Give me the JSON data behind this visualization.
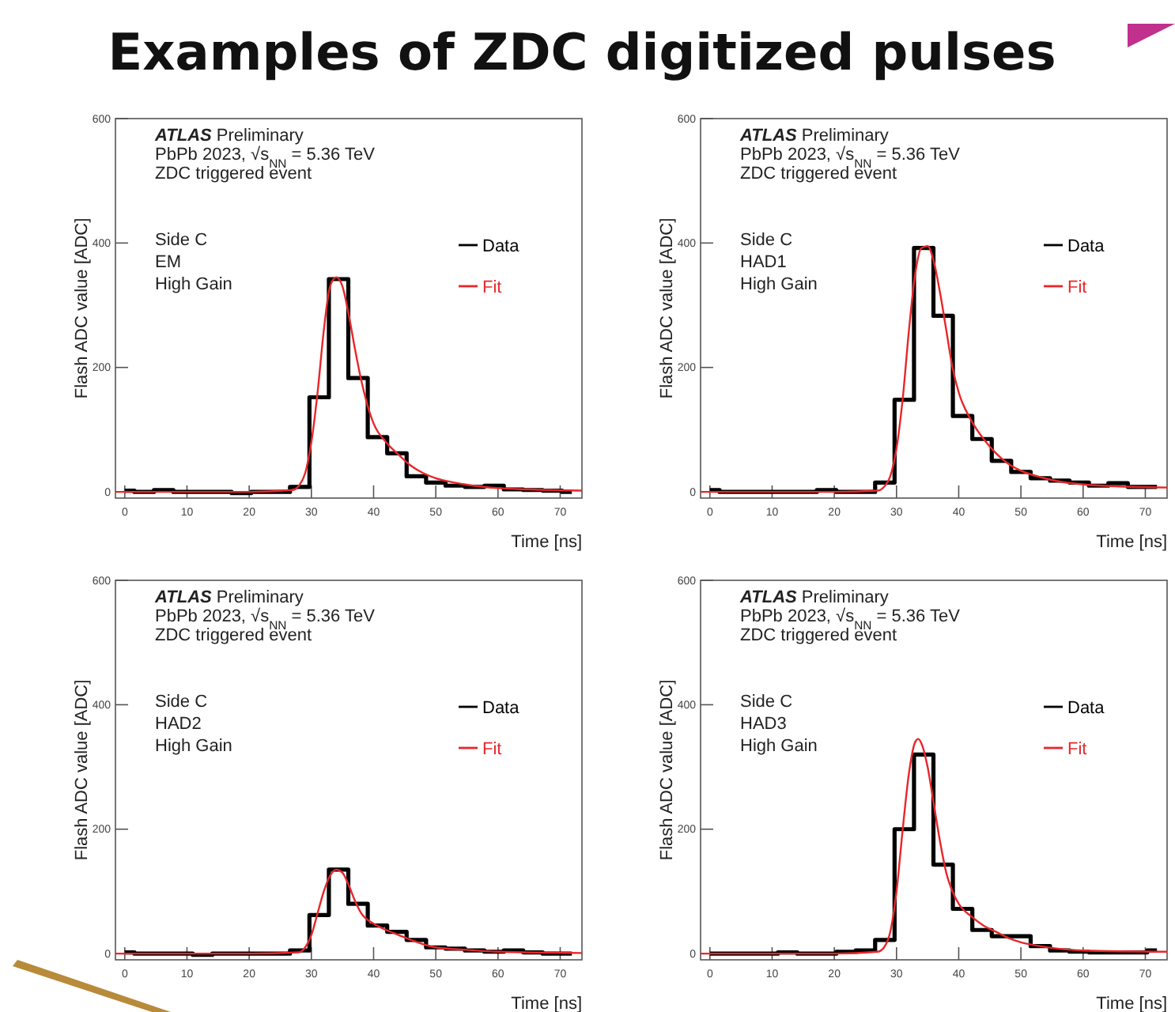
{
  "chart_data": [
    {
      "type": "line",
      "title": "Examples of ZDC digitized pulses",
      "xlabel": "Time [ns]",
      "ylabel": "Flash ADC value [ADC]",
      "xlim": [
        -1.5,
        73.5
      ],
      "ylim": [
        -10,
        600
      ],
      "xticks": [
        0,
        10,
        20,
        30,
        40,
        50,
        60,
        70
      ],
      "yticks": [
        0,
        200,
        400,
        600
      ],
      "legend": "top right",
      "grid": false,
      "annotations": [
        "ATLAS Preliminary",
        "PbPb 2023, √s$_{NN}$ = 5.36 TeV",
        "ZDC triggered event",
        "Side C",
        "EM",
        "High Gain"
      ],
      "series": [
        {
          "name": "Data",
          "type": "step",
          "color": "#000000",
          "x": [
            0,
            3.125,
            6.25,
            9.375,
            12.5,
            15.625,
            18.75,
            21.875,
            25,
            28.125,
            31.25,
            34.375,
            37.5,
            40.625,
            43.75,
            46.875,
            50,
            53.125,
            56.25,
            59.375,
            62.5,
            65.625,
            68.75,
            71.875
          ],
          "values": [
            2,
            0,
            3,
            0,
            0,
            0,
            -2,
            0,
            0,
            8,
            152,
            342,
            183,
            88,
            62,
            25,
            15,
            10,
            8,
            10,
            4,
            3,
            2,
            0
          ]
        },
        {
          "name": "Fit",
          "type": "line",
          "color": "#e8262a",
          "x": [
            -1.5,
            20,
            27,
            28,
            29,
            30,
            31,
            32,
            33,
            34,
            35,
            36,
            37,
            38,
            39,
            40,
            42,
            44,
            46,
            48,
            50,
            53,
            56,
            60,
            65,
            73.5
          ],
          "values": [
            0,
            0,
            3,
            10,
            30,
            80,
            160,
            260,
            330,
            345,
            330,
            285,
            230,
            180,
            140,
            110,
            80,
            60,
            42,
            30,
            22,
            15,
            10,
            6,
            4,
            2
          ]
        }
      ]
    },
    {
      "type": "line",
      "xlabel": "Time [ns]",
      "ylabel": "Flash ADC value [ADC]",
      "xlim": [
        -1.5,
        73.5
      ],
      "ylim": [
        -10,
        600
      ],
      "xticks": [
        0,
        10,
        20,
        30,
        40,
        50,
        60,
        70
      ],
      "yticks": [
        0,
        200,
        400,
        600
      ],
      "legend": "top right",
      "grid": false,
      "annotations": [
        "ATLAS Preliminary",
        "PbPb 2023, √s$_{NN}$ = 5.36 TeV",
        "ZDC triggered event",
        "Side C",
        "HAD1",
        "High Gain"
      ],
      "series": [
        {
          "name": "Data",
          "type": "step",
          "color": "#000000",
          "x": [
            0,
            3.125,
            6.25,
            9.375,
            12.5,
            15.625,
            18.75,
            21.875,
            25,
            28.125,
            31.25,
            34.375,
            37.5,
            40.625,
            43.75,
            46.875,
            50,
            53.125,
            56.25,
            59.375,
            62.5,
            65.625,
            68.75,
            71.875
          ],
          "values": [
            3,
            0,
            0,
            0,
            0,
            0,
            3,
            0,
            0,
            15,
            148,
            392,
            283,
            122,
            85,
            50,
            32,
            22,
            18,
            15,
            10,
            14,
            8,
            8
          ]
        },
        {
          "name": "Fit",
          "type": "line",
          "color": "#e8262a",
          "x": [
            -1.5,
            20,
            27,
            28,
            29,
            30,
            31,
            32,
            33,
            34,
            35,
            36,
            37,
            38,
            39,
            40,
            42,
            44,
            46,
            48,
            50,
            53,
            56,
            60,
            65,
            73.5
          ],
          "values": [
            0,
            0,
            2,
            8,
            25,
            70,
            150,
            260,
            350,
            392,
            395,
            370,
            320,
            260,
            200,
            160,
            115,
            85,
            62,
            45,
            34,
            24,
            17,
            12,
            9,
            7
          ]
        }
      ]
    },
    {
      "type": "line",
      "xlabel": "Time [ns]",
      "ylabel": "Flash ADC value [ADC]",
      "xlim": [
        -1.5,
        73.5
      ],
      "ylim": [
        -10,
        600
      ],
      "xticks": [
        0,
        10,
        20,
        30,
        40,
        50,
        60,
        70
      ],
      "yticks": [
        0,
        200,
        400,
        600
      ],
      "legend": "top right",
      "grid": false,
      "annotations": [
        "ATLAS Preliminary",
        "PbPb 2023, √s$_{NN}$ = 5.36 TeV",
        "ZDC triggered event",
        "Side C",
        "HAD2",
        "High Gain"
      ],
      "series": [
        {
          "name": "Data",
          "type": "step",
          "color": "#000000",
          "x": [
            0,
            3.125,
            6.25,
            9.375,
            12.5,
            15.625,
            18.75,
            21.875,
            25,
            28.125,
            31.25,
            34.375,
            37.5,
            40.625,
            43.75,
            46.875,
            50,
            53.125,
            56.25,
            59.375,
            62.5,
            65.625,
            68.75,
            71.875
          ],
          "values": [
            2,
            0,
            0,
            0,
            -2,
            0,
            0,
            0,
            0,
            5,
            62,
            135,
            80,
            45,
            35,
            22,
            10,
            8,
            5,
            3,
            5,
            2,
            0,
            0
          ]
        },
        {
          "name": "Fit",
          "type": "line",
          "color": "#e8262a",
          "x": [
            -1.5,
            20,
            28,
            29,
            30,
            31,
            32,
            33,
            34,
            35,
            36,
            37,
            38,
            40,
            42,
            44,
            46,
            48,
            50,
            55,
            60,
            73.5
          ],
          "values": [
            0,
            0,
            2,
            10,
            30,
            65,
            100,
            125,
            135,
            130,
            110,
            85,
            65,
            48,
            38,
            30,
            22,
            15,
            10,
            6,
            3,
            1
          ]
        }
      ]
    },
    {
      "type": "line",
      "xlabel": "Time [ns]",
      "ylabel": "Flash ADC value [ADC]",
      "xlim": [
        -1.5,
        73.5
      ],
      "ylim": [
        -10,
        600
      ],
      "xticks": [
        0,
        10,
        20,
        30,
        40,
        50,
        60,
        70
      ],
      "yticks": [
        0,
        200,
        400,
        600
      ],
      "legend": "top right",
      "grid": false,
      "annotations": [
        "ATLAS Preliminary",
        "PbPb 2023, √s$_{NN}$ = 5.36 TeV",
        "ZDC triggered event",
        "Side C",
        "HAD3",
        "High Gain"
      ],
      "series": [
        {
          "name": "Data",
          "type": "step",
          "color": "#000000",
          "x": [
            0,
            3.125,
            6.25,
            9.375,
            12.5,
            15.625,
            18.75,
            21.875,
            25,
            28.125,
            31.25,
            34.375,
            37.5,
            40.625,
            43.75,
            46.875,
            50,
            53.125,
            56.25,
            59.375,
            62.5,
            65.625,
            68.75,
            71.875
          ],
          "values": [
            0,
            0,
            0,
            0,
            2,
            0,
            0,
            3,
            5,
            22,
            200,
            320,
            143,
            72,
            38,
            28,
            28,
            12,
            5,
            3,
            2,
            2,
            2,
            5
          ]
        },
        {
          "name": "Fit",
          "type": "line",
          "color": "#e8262a",
          "x": [
            -1.5,
            20,
            27,
            28,
            29,
            30,
            31,
            32,
            33,
            33.5,
            34,
            35,
            36,
            37,
            38,
            39,
            40,
            42,
            44,
            46,
            48,
            50,
            53,
            56,
            60,
            73.5
          ],
          "values": [
            0,
            0,
            3,
            10,
            35,
            100,
            200,
            290,
            340,
            345,
            338,
            300,
            240,
            180,
            130,
            100,
            80,
            60,
            45,
            35,
            25,
            18,
            12,
            8,
            5,
            3
          ]
        }
      ]
    }
  ]
}
